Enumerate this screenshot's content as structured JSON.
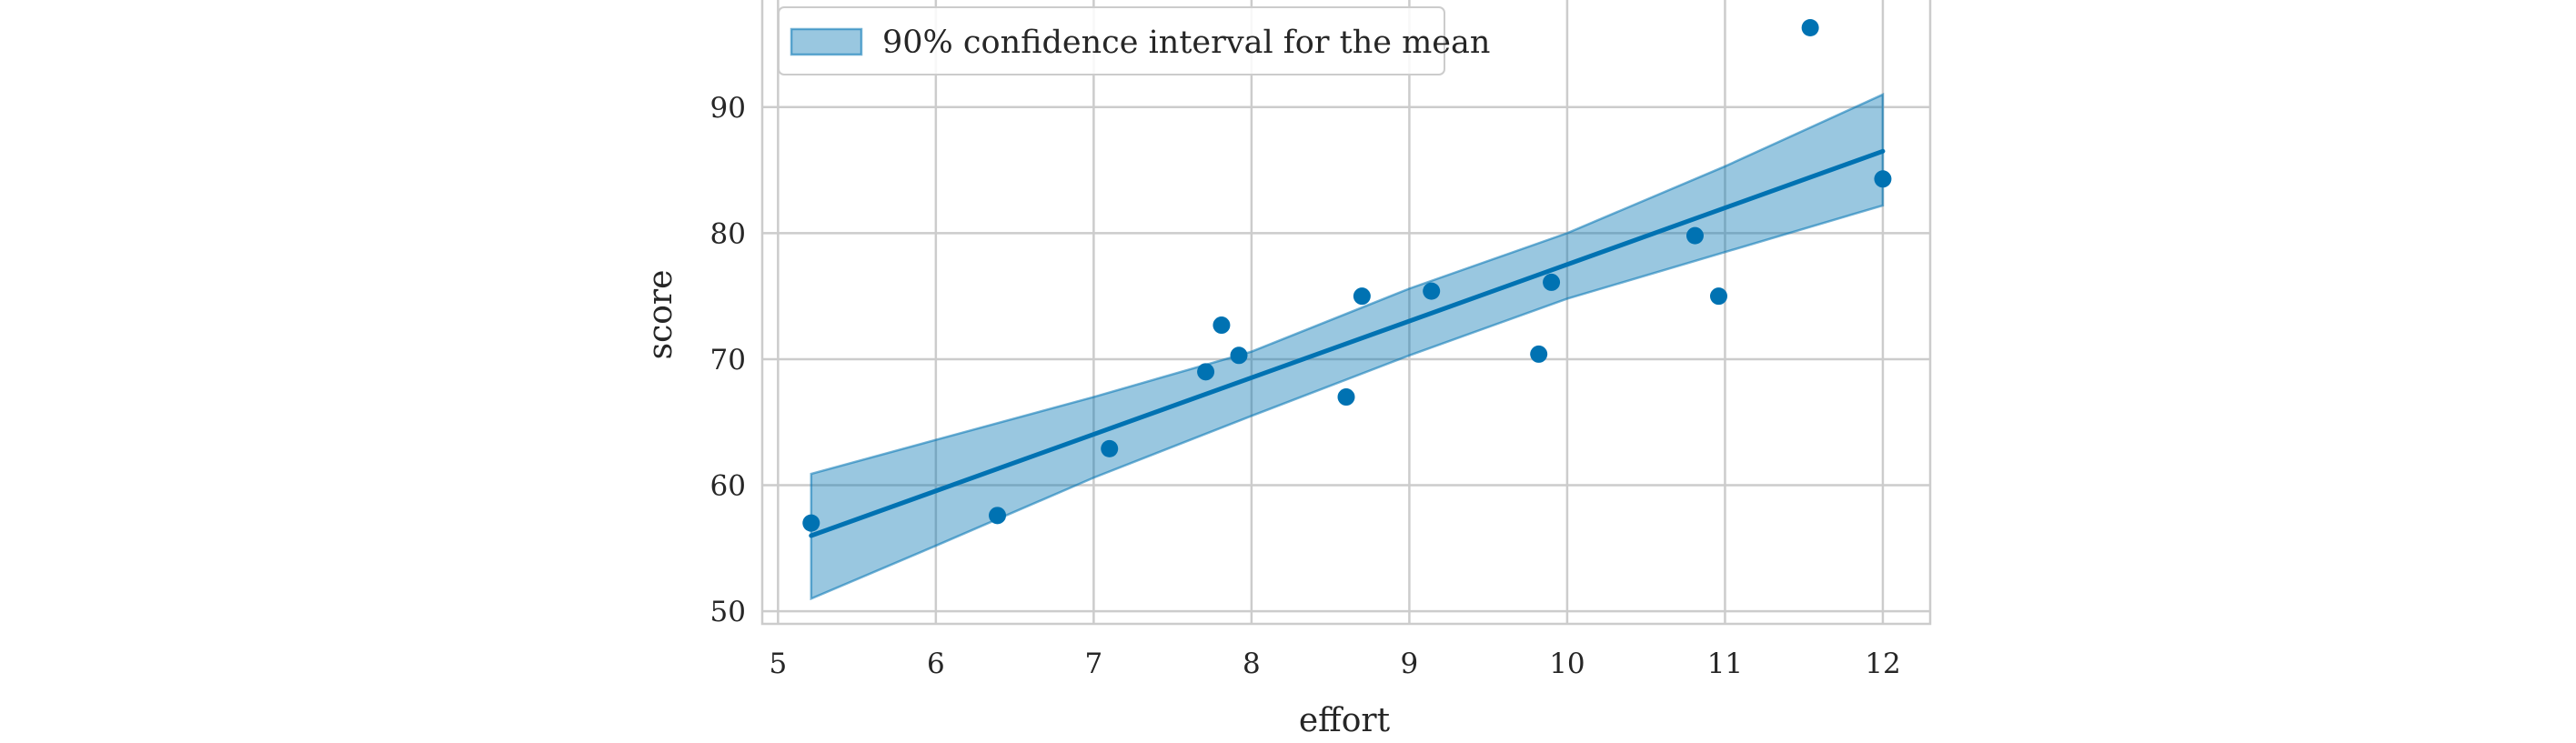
{
  "colors": {
    "line": "#0072b2",
    "points": "#0072b2",
    "band_fill": "#0072b2",
    "band_stroke": "#0072b2",
    "grid": "#cccccc"
  },
  "chart_data": {
    "type": "scatter",
    "xlabel": "effort",
    "ylabel": "score",
    "xlim": [
      4.9,
      12.3
    ],
    "ylim": [
      49,
      98.5
    ],
    "xticks": [
      5,
      6,
      7,
      8,
      9,
      10,
      11,
      12
    ],
    "yticks": [
      50,
      60,
      70,
      80,
      90
    ],
    "grid": true,
    "legend": {
      "placement": "top-left",
      "entries": [
        "90% confidence interval for the mean"
      ]
    },
    "points": {
      "x": [
        5.21,
        6.39,
        7.1,
        7.71,
        7.81,
        7.92,
        8.6,
        8.7,
        9.14,
        9.82,
        9.9,
        10.81,
        10.96,
        11.54,
        12.0
      ],
      "y": [
        57.0,
        57.6,
        62.9,
        69.0,
        72.7,
        70.3,
        67.0,
        75.0,
        75.4,
        70.4,
        76.1,
        79.8,
        75.0,
        96.3,
        84.3
      ]
    },
    "fit_line": {
      "x": [
        5.21,
        12.0
      ],
      "y": [
        56.0,
        86.5
      ]
    },
    "confidence_band": {
      "x": [
        5.21,
        6.0,
        7.0,
        8.0,
        9.0,
        10.0,
        11.0,
        12.0
      ],
      "lower": [
        51.0,
        55.2,
        60.6,
        65.5,
        70.3,
        74.8,
        78.5,
        82.2
      ],
      "upper": [
        60.9,
        63.6,
        67.0,
        70.6,
        75.6,
        80.0,
        85.3,
        91.0
      ]
    }
  }
}
